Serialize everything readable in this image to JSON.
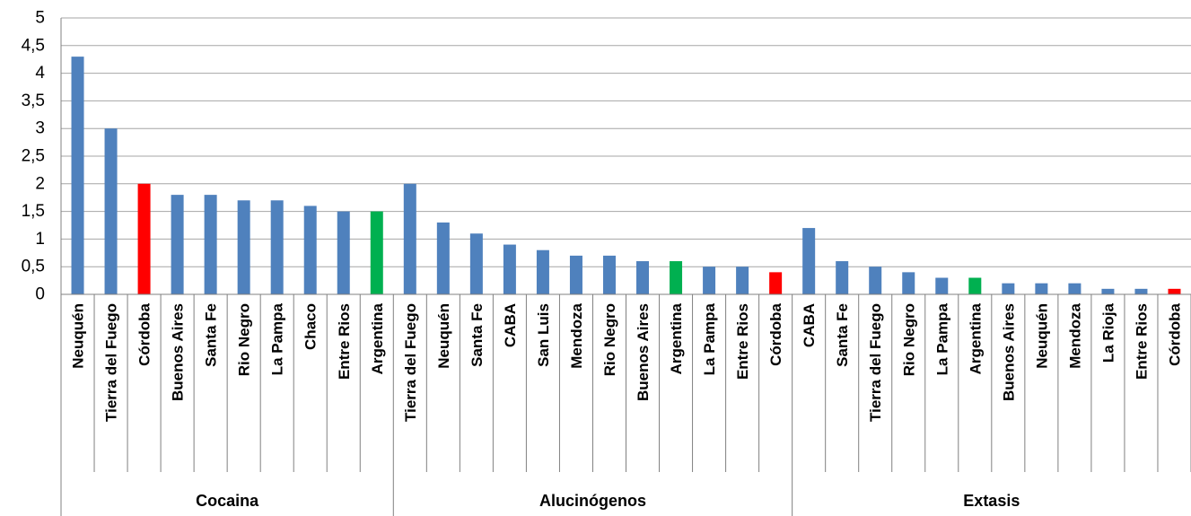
{
  "chart_data": {
    "type": "bar",
    "ylim": [
      0,
      5
    ],
    "yticks": [
      "0",
      "0,5",
      "1",
      "1,5",
      "2",
      "2,5",
      "3",
      "3,5",
      "4",
      "4,5",
      "5"
    ],
    "grid": true,
    "colors": {
      "default": "#4f81bd",
      "cordoba": "#ff0000",
      "argentina": "#00b050",
      "grid": "#a6a6a6"
    },
    "groups": [
      {
        "name": "Cocaina",
        "items": [
          {
            "label": "Neuquén",
            "value": 4.3,
            "color": "default"
          },
          {
            "label": "Tierra del Fuego",
            "value": 3.0,
            "color": "default"
          },
          {
            "label": "Córdoba",
            "value": 2.0,
            "color": "cordoba"
          },
          {
            "label": "Buenos Aires",
            "value": 1.8,
            "color": "default"
          },
          {
            "label": "Santa Fe",
            "value": 1.8,
            "color": "default"
          },
          {
            "label": "Rio Negro",
            "value": 1.7,
            "color": "default"
          },
          {
            "label": "La Pampa",
            "value": 1.7,
            "color": "default"
          },
          {
            "label": "Chaco",
            "value": 1.6,
            "color": "default"
          },
          {
            "label": "Entre Rios",
            "value": 1.5,
            "color": "default"
          },
          {
            "label": "Argentina",
            "value": 1.5,
            "color": "argentina"
          }
        ]
      },
      {
        "name": "Alucinógenos",
        "items": [
          {
            "label": "Tierra del Fuego",
            "value": 2.0,
            "color": "default"
          },
          {
            "label": "Neuquén",
            "value": 1.3,
            "color": "default"
          },
          {
            "label": "Santa Fe",
            "value": 1.1,
            "color": "default"
          },
          {
            "label": "CABA",
            "value": 0.9,
            "color": "default"
          },
          {
            "label": "San Luis",
            "value": 0.8,
            "color": "default"
          },
          {
            "label": "Mendoza",
            "value": 0.7,
            "color": "default"
          },
          {
            "label": "Rio Negro",
            "value": 0.7,
            "color": "default"
          },
          {
            "label": "Buenos Aires",
            "value": 0.6,
            "color": "default"
          },
          {
            "label": "Argentina",
            "value": 0.6,
            "color": "argentina"
          },
          {
            "label": "La Pampa",
            "value": 0.5,
            "color": "default"
          },
          {
            "label": "Entre Rios",
            "value": 0.5,
            "color": "default"
          },
          {
            "label": "Córdoba",
            "value": 0.4,
            "color": "cordoba"
          }
        ]
      },
      {
        "name": "Extasis",
        "items": [
          {
            "label": "CABA",
            "value": 1.2,
            "color": "default"
          },
          {
            "label": "Santa Fe",
            "value": 0.6,
            "color": "default"
          },
          {
            "label": "Tierra del Fuego",
            "value": 0.5,
            "color": "default"
          },
          {
            "label": "Rio Negro",
            "value": 0.4,
            "color": "default"
          },
          {
            "label": "La Pampa",
            "value": 0.3,
            "color": "default"
          },
          {
            "label": "Argentina",
            "value": 0.3,
            "color": "argentina"
          },
          {
            "label": "Buenos Aires",
            "value": 0.2,
            "color": "default"
          },
          {
            "label": "Neuquén",
            "value": 0.2,
            "color": "default"
          },
          {
            "label": "Mendoza",
            "value": 0.2,
            "color": "default"
          },
          {
            "label": "La Rioja",
            "value": 0.1,
            "color": "default"
          },
          {
            "label": "Entre Rios",
            "value": 0.1,
            "color": "default"
          },
          {
            "label": "Córdoba",
            "value": 0.1,
            "color": "cordoba"
          }
        ]
      }
    ]
  }
}
